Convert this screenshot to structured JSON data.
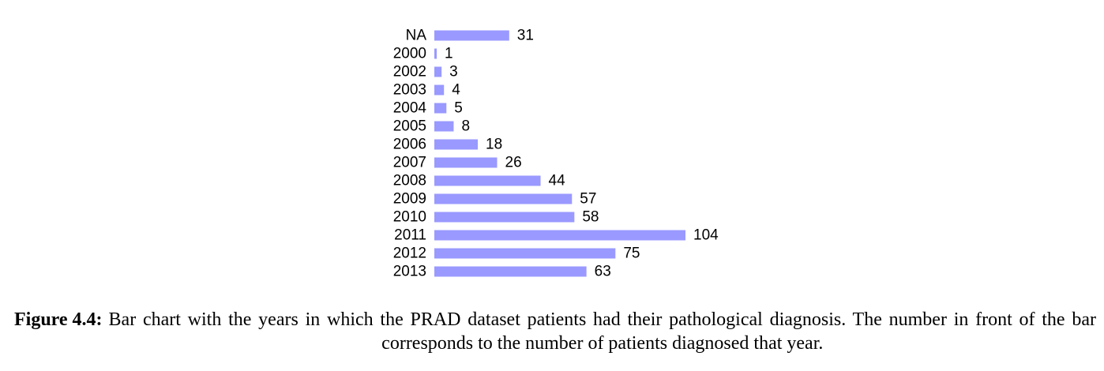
{
  "chart_data": {
    "type": "bar",
    "orientation": "horizontal",
    "categories": [
      "NA",
      "2000",
      "2002",
      "2003",
      "2004",
      "2005",
      "2006",
      "2007",
      "2008",
      "2009",
      "2010",
      "2011",
      "2012",
      "2013"
    ],
    "values": [
      31,
      1,
      3,
      4,
      5,
      8,
      18,
      26,
      44,
      57,
      58,
      104,
      75,
      63
    ],
    "data_labels": [
      "31",
      "1",
      "3",
      "4",
      "5",
      "8",
      "18",
      "26",
      "44",
      "57",
      "58",
      "104",
      "75",
      "63"
    ],
    "bar_color": "#9999ff",
    "xlim": [
      0,
      104
    ],
    "grid": false,
    "axes_visible": false,
    "legend": "none"
  },
  "caption": {
    "label": "Figure 4.4:",
    "text": "Bar chart with the years in which the PRAD dataset patients had their pathological diagnosis. The number in front of the bar corresponds to the number of patients diagnosed that year."
  }
}
